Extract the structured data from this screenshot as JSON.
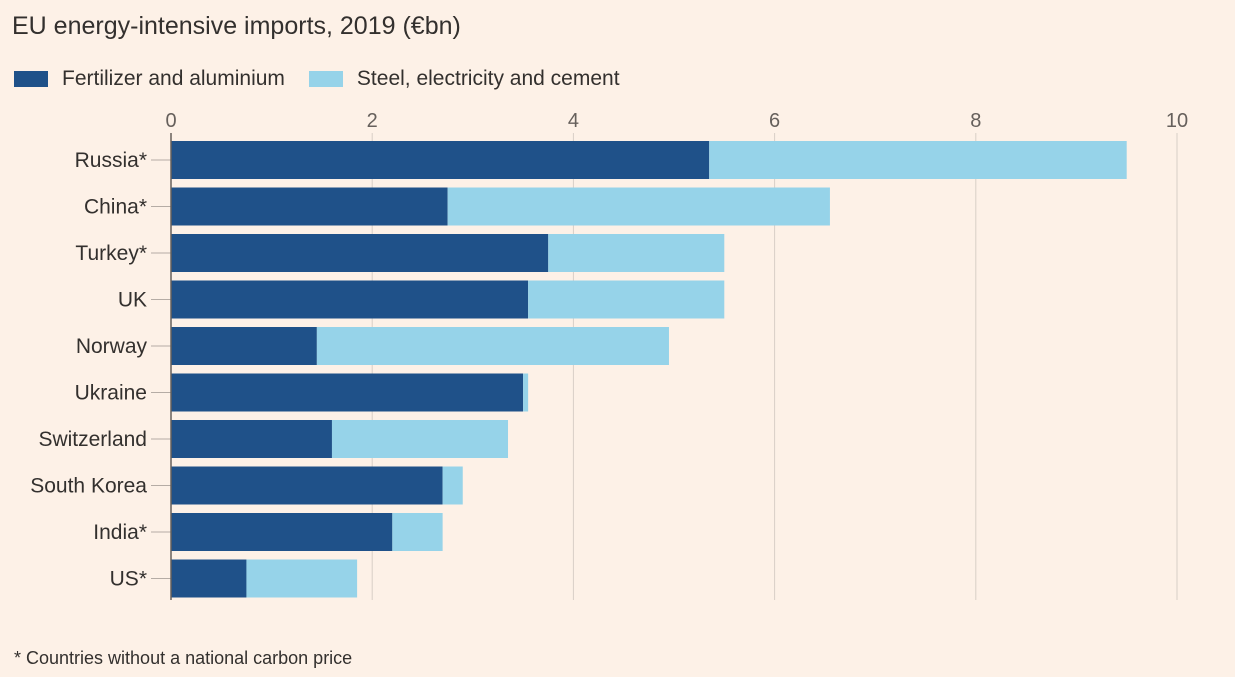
{
  "chart_data": {
    "type": "bar",
    "orientation": "horizontal",
    "stacked": true,
    "title": "EU energy-intensive imports, 2019 (€bn)",
    "xlim": [
      0,
      10
    ],
    "xticks": [
      "0",
      "2",
      "4",
      "6",
      "8",
      "10"
    ],
    "grid": true,
    "legend_position": "top-left",
    "categories": [
      "Russia*",
      "China*",
      "Turkey*",
      "UK",
      "Norway",
      "Ukraine",
      "Switzerland",
      "South Korea",
      "India*",
      "US*"
    ],
    "series": [
      {
        "name": "Fertilizer and aluminium",
        "color": "#1f5189",
        "values": [
          5.35,
          2.75,
          3.75,
          3.55,
          1.45,
          3.5,
          1.6,
          2.7,
          2.2,
          0.75
        ]
      },
      {
        "name": "Steel, electricity and cement",
        "color": "#96d3e9",
        "values": [
          4.15,
          3.8,
          1.75,
          1.95,
          3.5,
          0.05,
          1.75,
          0.2,
          0.5,
          1.1
        ]
      }
    ],
    "footnote": "* Countries without a national carbon price"
  }
}
